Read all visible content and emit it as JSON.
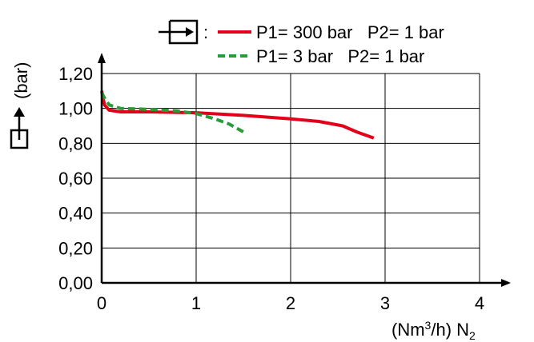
{
  "chart_data": {
    "type": "line",
    "x_ticks": [
      "0",
      "1",
      "2",
      "3",
      "4"
    ],
    "y_ticks": [
      "0,00",
      "0,20",
      "0,40",
      "0,60",
      "0,80",
      "1,00",
      "1,20"
    ],
    "xlim": [
      0,
      4
    ],
    "ylim": [
      0,
      1.2
    ],
    "grid": true,
    "legend_position": "top-right",
    "legend_colon": ":",
    "xlabel": "(Nm³/h) N₂",
    "xlabel_parts": {
      "prefix": "(Nm",
      "sup": "3",
      "middle": "/h) N",
      "sub": "2"
    },
    "ylabel": "(bar)",
    "icons": {
      "legend": "inlet-port-icon",
      "y_axis": "outlet-port-icon"
    },
    "series": [
      {
        "name": "P1= 300 bar   P2= 1 bar",
        "color": "#e3001b",
        "style": "solid",
        "points": [
          [
            0.0,
            1.1
          ],
          [
            0.03,
            1.02
          ],
          [
            0.08,
            0.99
          ],
          [
            0.2,
            0.98
          ],
          [
            0.5,
            0.98
          ],
          [
            1.0,
            0.975
          ],
          [
            1.5,
            0.96
          ],
          [
            2.0,
            0.94
          ],
          [
            2.3,
            0.925
          ],
          [
            2.55,
            0.9
          ],
          [
            2.7,
            0.865
          ],
          [
            2.88,
            0.83
          ]
        ]
      },
      {
        "name": "P1= 3 bar   P2= 1 bar",
        "color": "#2b9a3b",
        "style": "dashed",
        "points": [
          [
            0.0,
            1.09
          ],
          [
            0.03,
            1.06
          ],
          [
            0.08,
            1.02
          ],
          [
            0.2,
            1.0
          ],
          [
            0.5,
            0.995
          ],
          [
            0.8,
            0.985
          ],
          [
            1.0,
            0.97
          ],
          [
            1.2,
            0.94
          ],
          [
            1.35,
            0.91
          ],
          [
            1.5,
            0.865
          ]
        ]
      }
    ]
  }
}
